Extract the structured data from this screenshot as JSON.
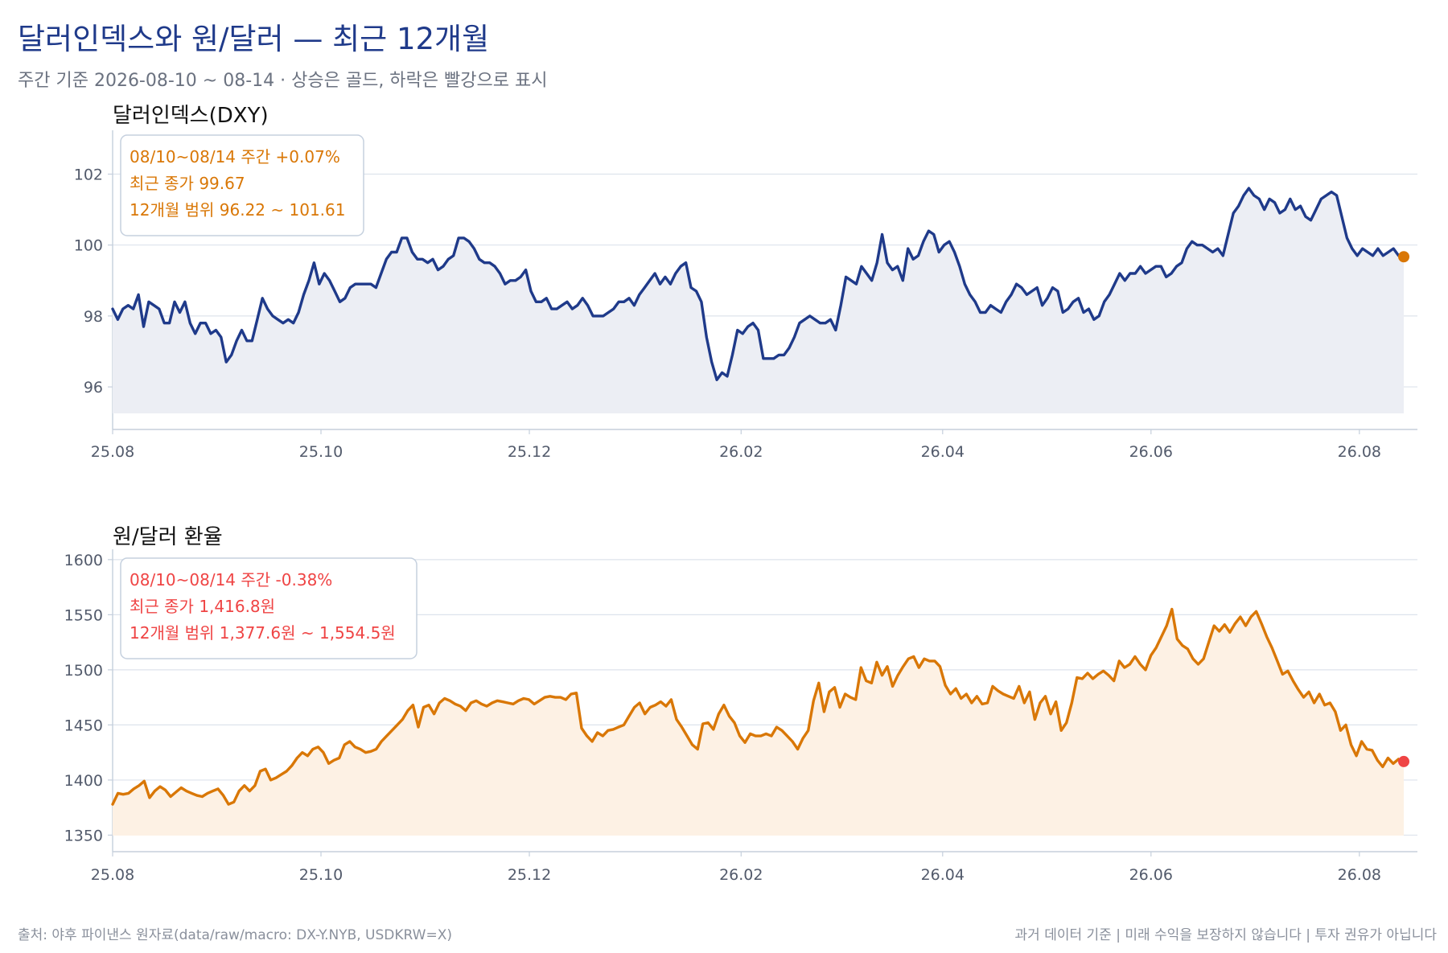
{
  "title": "달러인덱스와 원/달러 — 최근 12개월",
  "subtitle": "주간 기준 2026-08-10 ~ 08-14 · 상승은 골드, 하락은 빨강으로 표시",
  "footer": {
    "source": "출처: 야후 파이낸스 원자료(data/raw/macro: DX-Y.NYB, USDKRW=X)",
    "disclaimer": "과거 데이터 기준 | 미래 수익을 보장하지 않습니다 | 투자 권유가 아닙니다"
  },
  "colors": {
    "title": "#1f3a8a",
    "dxy_line": "#1f3a8a",
    "dxy_fill": "#eceef4",
    "krw_line": "#d97706",
    "krw_fill": "#fdf1e4",
    "up_gold": "#d97706",
    "down_red": "#ef4444",
    "grid": "#dde3ec",
    "axis": "#c5cfdc",
    "box_border": "#c5d0de"
  },
  "chart_data": [
    {
      "type": "line",
      "title": "달러인덱스(DXY)",
      "xlabel": "",
      "ylabel": "",
      "x_ticks": [
        "25.08",
        "25.10",
        "25.12",
        "26.02",
        "26.04",
        "26.06",
        "26.08"
      ],
      "x_range": [
        "2025-08-01",
        "2026-08-18"
      ],
      "ylim": [
        94.8,
        103.1
      ],
      "y_ticks": [
        96,
        98,
        100,
        102
      ],
      "grid": true,
      "info_box": {
        "lines": [
          "08/10~08/14 주간 +0.07%",
          "최근 종가 99.67",
          "12개월 범위 96.22 ~ 101.61"
        ],
        "color": "#d97706",
        "placement": "top-left"
      },
      "last_marker": {
        "value": 99.67,
        "color": "#d97706"
      },
      "series": [
        {
          "start": "2025-08-01",
          "points": [
            98.2,
            97.9,
            98.2,
            98.3,
            98.2,
            98.6,
            97.7,
            98.4,
            98.3,
            98.2,
            97.8,
            97.8,
            98.4,
            98.1,
            98.4,
            97.8,
            97.5,
            97.8,
            97.8,
            97.5,
            97.6,
            97.4,
            96.7,
            96.9,
            97.3,
            97.6,
            97.3,
            97.3,
            97.9,
            98.5,
            98.2,
            98.0,
            97.9,
            97.8,
            97.9,
            97.8,
            98.1,
            98.6,
            99.0,
            99.5,
            98.9,
            99.2,
            99.0,
            98.7,
            98.4,
            98.5,
            98.8,
            98.9,
            98.9,
            98.9,
            98.9,
            98.8,
            99.2,
            99.6,
            99.8,
            99.8,
            100.2,
            100.2,
            99.8,
            99.6,
            99.6,
            99.5,
            99.6,
            99.3,
            99.4,
            99.6,
            99.7,
            100.2,
            100.2,
            100.1,
            99.9,
            99.6,
            99.5,
            99.5,
            99.4,
            99.2,
            98.9,
            99.0,
            99.0,
            99.1,
            99.3,
            98.7,
            98.4,
            98.4,
            98.5,
            98.2,
            98.2,
            98.3,
            98.4,
            98.2,
            98.3,
            98.5,
            98.3,
            98.0,
            98.0,
            98.0,
            98.1,
            98.2,
            98.4,
            98.4,
            98.5,
            98.3,
            98.6,
            98.8,
            99.0,
            99.2,
            98.9,
            99.1,
            98.9,
            99.2,
            99.4,
            99.5,
            98.8,
            98.7,
            98.4,
            97.4,
            96.7,
            96.2,
            96.4,
            96.3,
            96.9,
            97.6,
            97.5,
            97.7,
            97.8,
            97.6,
            96.8,
            96.8,
            96.8,
            96.9,
            96.9,
            97.1,
            97.4,
            97.8,
            97.9,
            98.0,
            97.9,
            97.8,
            97.8,
            97.9,
            97.6,
            98.3,
            99.1,
            99.0,
            98.9,
            99.4,
            99.2,
            99.0,
            99.5,
            100.3,
            99.5,
            99.3,
            99.4,
            99.0,
            99.9,
            99.6,
            99.7,
            100.1,
            100.4,
            100.3,
            99.8,
            100.0,
            100.1,
            99.8,
            99.4,
            98.9,
            98.6,
            98.4,
            98.1,
            98.1,
            98.3,
            98.2,
            98.1,
            98.4,
            98.6,
            98.9,
            98.8,
            98.6,
            98.7,
            98.8,
            98.3,
            98.5,
            98.8,
            98.7,
            98.1,
            98.2,
            98.4,
            98.5,
            98.1,
            98.2,
            97.9,
            98.0,
            98.4,
            98.6,
            98.9,
            99.2,
            99.0,
            99.2,
            99.2,
            99.4,
            99.2,
            99.3,
            99.4,
            99.4,
            99.1,
            99.2,
            99.4,
            99.5,
            99.9,
            100.1,
            100.0,
            100.0,
            99.9,
            99.8,
            99.9,
            99.7,
            100.3,
            100.9,
            101.1,
            101.4,
            101.6,
            101.4,
            101.3,
            101.0,
            101.3,
            101.2,
            100.9,
            101.0,
            101.3,
            101.0,
            101.1,
            100.8,
            100.7,
            101.0,
            101.3,
            101.4,
            101.5,
            101.4,
            100.8,
            100.2,
            99.9,
            99.7,
            99.9,
            99.8,
            99.7,
            99.9,
            99.7,
            99.8,
            99.9,
            99.7,
            99.67
          ]
        }
      ]
    },
    {
      "type": "line",
      "title": "원/달러 환율",
      "xlabel": "",
      "ylabel": "",
      "x_ticks": [
        "25.08",
        "25.10",
        "25.12",
        "26.02",
        "26.04",
        "26.06",
        "26.08"
      ],
      "x_range": [
        "2025-08-01",
        "2026-08-18"
      ],
      "ylim": [
        1335,
        1605
      ],
      "y_ticks": [
        1350,
        1400,
        1450,
        1500,
        1550,
        1600
      ],
      "grid": true,
      "info_box": {
        "lines": [
          "08/10~08/14 주간 -0.38%",
          "최근 종가 1,416.8원",
          "12개월 범위 1,377.6원 ~ 1,554.5원"
        ],
        "color": "#ef4444",
        "placement": "top-left"
      },
      "last_marker": {
        "value": 1416.8,
        "color": "#ef4444"
      },
      "series": [
        {
          "start": "2025-08-01",
          "points": [
            1378,
            1388,
            1387,
            1388,
            1392,
            1395,
            1399,
            1384,
            1390,
            1394,
            1391,
            1385,
            1389,
            1393,
            1390,
            1388,
            1386,
            1385,
            1388,
            1390,
            1392,
            1386,
            1378,
            1380,
            1390,
            1395,
            1390,
            1395,
            1408,
            1410,
            1400,
            1402,
            1405,
            1408,
            1413,
            1420,
            1425,
            1422,
            1428,
            1430,
            1425,
            1415,
            1418,
            1420,
            1432,
            1435,
            1430,
            1428,
            1425,
            1426,
            1428,
            1435,
            1440,
            1445,
            1450,
            1455,
            1463,
            1468,
            1448,
            1466,
            1468,
            1460,
            1470,
            1474,
            1472,
            1469,
            1467,
            1463,
            1470,
            1472,
            1469,
            1467,
            1470,
            1472,
            1471,
            1470,
            1469,
            1472,
            1474,
            1473,
            1469,
            1472,
            1475,
            1476,
            1475,
            1475,
            1473,
            1478,
            1479,
            1447,
            1440,
            1435,
            1443,
            1440,
            1445,
            1446,
            1448,
            1450,
            1458,
            1466,
            1470,
            1460,
            1466,
            1468,
            1471,
            1467,
            1473,
            1455,
            1448,
            1440,
            1432,
            1428,
            1451,
            1452,
            1446,
            1460,
            1468,
            1458,
            1452,
            1440,
            1434,
            1442,
            1440,
            1440,
            1442,
            1440,
            1448,
            1445,
            1440,
            1435,
            1428,
            1438,
            1445,
            1472,
            1488,
            1462,
            1480,
            1484,
            1466,
            1478,
            1475,
            1473,
            1502,
            1490,
            1488,
            1507,
            1495,
            1503,
            1485,
            1495,
            1503,
            1510,
            1512,
            1502,
            1510,
            1508,
            1508,
            1503,
            1486,
            1478,
            1483,
            1474,
            1478,
            1470,
            1476,
            1469,
            1470,
            1485,
            1481,
            1478,
            1476,
            1474,
            1485,
            1470,
            1480,
            1455,
            1470,
            1476,
            1460,
            1471,
            1445,
            1452,
            1470,
            1493,
            1492,
            1497,
            1492,
            1496,
            1499,
            1495,
            1490,
            1508,
            1502,
            1505,
            1512,
            1505,
            1500,
            1513,
            1520,
            1530,
            1540,
            1555,
            1528,
            1522,
            1519,
            1510,
            1505,
            1510,
            1525,
            1540,
            1535,
            1541,
            1534,
            1542,
            1548,
            1540,
            1548,
            1553,
            1542,
            1530,
            1520,
            1508,
            1496,
            1499,
            1490,
            1482,
            1475,
            1480,
            1470,
            1478,
            1468,
            1470,
            1462,
            1445,
            1450,
            1432,
            1422,
            1435,
            1428,
            1427,
            1418,
            1412,
            1420,
            1415,
            1419,
            1416.8
          ]
        }
      ]
    }
  ]
}
